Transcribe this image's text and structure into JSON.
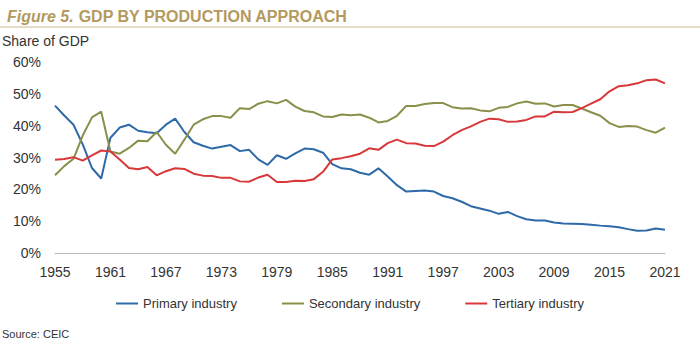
{
  "chart_data": {
    "type": "line",
    "title": "Figure 5. GDP BY PRODUCTION APPROACH",
    "y_label": "Share of GDP",
    "source": "Source: CEIC",
    "x": [
      1955,
      1956,
      1957,
      1958,
      1959,
      1960,
      1961,
      1962,
      1963,
      1964,
      1965,
      1966,
      1967,
      1968,
      1969,
      1970,
      1971,
      1972,
      1973,
      1974,
      1975,
      1976,
      1977,
      1978,
      1979,
      1980,
      1981,
      1982,
      1983,
      1984,
      1985,
      1986,
      1987,
      1988,
      1989,
      1990,
      1991,
      1992,
      1993,
      1994,
      1995,
      1996,
      1997,
      1998,
      1999,
      2000,
      2001,
      2002,
      2003,
      2004,
      2005,
      2006,
      2007,
      2008,
      2009,
      2010,
      2011,
      2012,
      2013,
      2014,
      2015,
      2016,
      2017,
      2018,
      2019,
      2020,
      2021
    ],
    "series": [
      {
        "name": "Primary industry",
        "color": "#2e6aa8",
        "values": [
          46.3,
          43.2,
          40.3,
          34.1,
          26.7,
          23.4,
          36.2,
          39.4,
          40.3,
          38.4,
          37.9,
          37.6,
          40.3,
          42.2,
          38.0,
          34.8,
          33.7,
          32.8,
          33.4,
          33.9,
          32.0,
          32.4,
          29.4,
          27.7,
          30.7,
          29.6,
          31.3,
          32.8,
          32.6,
          31.5,
          27.9,
          26.6,
          26.3,
          25.2,
          24.6,
          26.6,
          24.0,
          21.3,
          19.3,
          19.5,
          19.6,
          19.3,
          17.9,
          17.2,
          16.1,
          14.7,
          14.0,
          13.3,
          12.3,
          12.9,
          11.6,
          10.6,
          10.2,
          10.2,
          9.6,
          9.3,
          9.2,
          9.1,
          8.9,
          8.6,
          8.4,
          8.1,
          7.5,
          7.0,
          7.1,
          7.7,
          7.3
        ]
      },
      {
        "name": "Secondary industry",
        "color": "#8a8f4a",
        "values": [
          24.4,
          27.3,
          29.6,
          36.9,
          42.6,
          44.4,
          31.9,
          31.2,
          33.0,
          35.3,
          35.1,
          38.0,
          34.0,
          31.2,
          35.6,
          40.3,
          42.0,
          43.0,
          43.0,
          42.5,
          45.5,
          45.2,
          46.9,
          47.7,
          47.0,
          48.1,
          46.0,
          44.6,
          44.2,
          42.9,
          42.7,
          43.5,
          43.3,
          43.5,
          42.5,
          41.0,
          41.5,
          43.1,
          46.2,
          46.2,
          46.8,
          47.1,
          47.1,
          45.8,
          45.4,
          45.5,
          44.8,
          44.5,
          45.6,
          45.9,
          47.0,
          47.6,
          46.9,
          47.0,
          46.0,
          46.5,
          46.5,
          45.4,
          44.2,
          43.1,
          40.8,
          39.6,
          39.9,
          39.7,
          38.6,
          37.8,
          39.4
        ]
      },
      {
        "name": "Tertiary industry",
        "color": "#d9383a",
        "values": [
          29.3,
          29.5,
          30.1,
          29.0,
          30.7,
          32.2,
          31.9,
          29.4,
          26.7,
          26.3,
          27.0,
          24.4,
          25.7,
          26.6,
          26.4,
          24.9,
          24.3,
          24.2,
          23.6,
          23.6,
          22.5,
          22.4,
          23.7,
          24.6,
          22.3,
          22.3,
          22.7,
          22.6,
          23.2,
          25.5,
          29.4,
          29.8,
          30.4,
          31.2,
          32.9,
          32.4,
          34.5,
          35.6,
          34.5,
          34.4,
          33.7,
          33.6,
          35.0,
          37.0,
          38.6,
          39.8,
          41.2,
          42.2,
          42.0,
          41.2,
          41.3,
          41.8,
          42.9,
          42.9,
          44.4,
          44.2,
          44.3,
          45.5,
          46.9,
          48.3,
          50.8,
          52.4,
          52.7,
          53.3,
          54.3,
          54.5,
          53.3
        ]
      }
    ],
    "xlim": [
      1955,
      2021
    ],
    "xticks": [
      1955,
      1961,
      1967,
      1973,
      1979,
      1985,
      1991,
      1997,
      2003,
      2009,
      2015,
      2021
    ],
    "ylim": [
      0,
      60
    ],
    "yticks": [
      {
        "value": 0,
        "label": "0%"
      },
      {
        "value": 10,
        "label": "10%"
      },
      {
        "value": 20,
        "label": "20%"
      },
      {
        "value": 30,
        "label": "30%"
      },
      {
        "value": 40,
        "label": "40%"
      },
      {
        "value": 50,
        "label": "50%"
      },
      {
        "value": 60,
        "label": "60%"
      }
    ],
    "grid": false,
    "legend": "bottom"
  }
}
